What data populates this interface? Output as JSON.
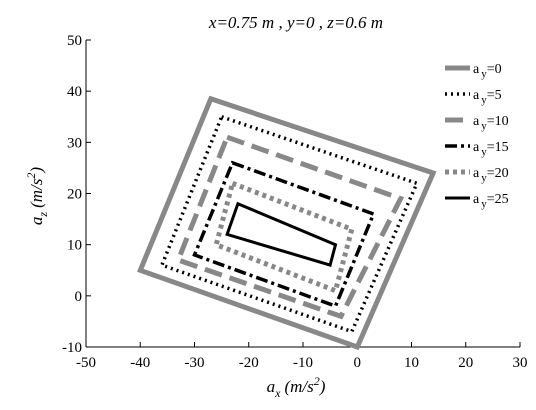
{
  "chart_data": {
    "type": "line",
    "title": "x=0.75 m , y=0 , z=0.6 m",
    "xlabel": {
      "base": "a",
      "sub": "x",
      "unit_pre": "(m/s",
      "sup": "2",
      "unit_post": ")"
    },
    "ylabel": {
      "base": "a",
      "sub": "z",
      "unit_pre": "(m/s",
      "sup": "2",
      "unit_post": ")"
    },
    "xlim": [
      -50,
      30
    ],
    "ylim": [
      -10,
      50
    ],
    "xticks": [
      "-50",
      "-40",
      "-30",
      "-20",
      "-10",
      "0",
      "10",
      "20",
      "30"
    ],
    "yticks": [
      "-10",
      "0",
      "10",
      "20",
      "30",
      "40",
      "50"
    ],
    "grid": false,
    "legend_position": "right",
    "series": [
      {
        "name_base": "a",
        "name_sub": "y",
        "name_eq": "=0",
        "style": "solid",
        "color": "#888888",
        "points": [
          [
            -27,
            38.5
          ],
          [
            14,
            24
          ],
          [
            0,
            -10
          ],
          [
            -40,
            5
          ]
        ]
      },
      {
        "name_base": "a",
        "name_sub": "y",
        "name_eq": "=5",
        "style": "dotted",
        "color": "#000000",
        "points": [
          [
            -25,
            35
          ],
          [
            11,
            22
          ],
          [
            -1,
            -7
          ],
          [
            -36,
            6
          ]
        ]
      },
      {
        "name_base": "a",
        "name_sub": "y",
        "name_eq": "=10",
        "style": "dashed",
        "color": "#888888",
        "points": [
          [
            -24,
            31
          ],
          [
            8,
            19
          ],
          [
            -3,
            -4
          ],
          [
            -33,
            7
          ]
        ]
      },
      {
        "name_base": "a",
        "name_sub": "y",
        "name_eq": "=15",
        "style": "dashdot",
        "color": "#000000",
        "points": [
          [
            -23,
            26
          ],
          [
            3,
            16
          ],
          [
            -4,
            -2
          ],
          [
            -30,
            8
          ]
        ]
      },
      {
        "name_base": "a",
        "name_sub": "y",
        "name_eq": "=20",
        "style": "dashdot-gray",
        "color": "#888888",
        "points": [
          [
            -23,
            22
          ],
          [
            -1,
            13
          ],
          [
            -4,
            1
          ],
          [
            -26,
            10
          ]
        ]
      },
      {
        "name_base": "a",
        "name_sub": "y",
        "name_eq": "=25",
        "style": "solid-black",
        "color": "#000000",
        "points": [
          [
            -22,
            18
          ],
          [
            -4,
            10
          ],
          [
            -5,
            6
          ],
          [
            -24,
            12
          ]
        ]
      }
    ]
  }
}
